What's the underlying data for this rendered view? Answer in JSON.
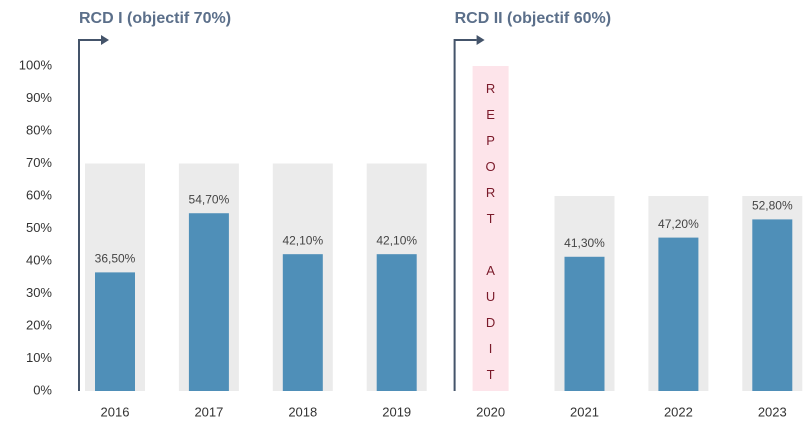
{
  "chart_data": {
    "type": "bar",
    "categories": [
      "2016",
      "2017",
      "2018",
      "2019",
      "2020",
      "2021",
      "2022",
      "2023"
    ],
    "series": [
      {
        "color": "#ebebeb",
        "values": [
          70,
          70,
          70,
          70,
          null,
          60,
          60,
          60
        ]
      },
      {
        "color": "#4f8fb8",
        "values": [
          36.5,
          54.7,
          42.1,
          42.1,
          null,
          41.3,
          47.2,
          52.8
        ],
        "value_labels": [
          "36,50%",
          "54,70%",
          "42,10%",
          "42,10%",
          null,
          "41,30%",
          "47,20%",
          "52,80%"
        ]
      }
    ],
    "audit": {
      "text": "REPORT AUDIT",
      "category": "2020",
      "value": 100,
      "color": "#fde4ea"
    },
    "annotations": [
      {
        "text": "RCD I (objectif 70%)",
        "category": "2016"
      },
      {
        "text": "RCD II (objectif 60%)",
        "category": "2020"
      }
    ],
    "ylim": [
      0,
      100
    ],
    "yticks": [
      {
        "value": 0,
        "label": "0%"
      },
      {
        "value": 10,
        "label": "10%"
      },
      {
        "value": 20,
        "label": "20%"
      },
      {
        "value": 30,
        "label": "30%"
      },
      {
        "value": 40,
        "label": "40%"
      },
      {
        "value": 50,
        "label": "50%"
      },
      {
        "value": 60,
        "label": "60%"
      },
      {
        "value": 70,
        "label": "70%"
      },
      {
        "value": 80,
        "label": "80%"
      },
      {
        "value": 90,
        "label": "90%"
      },
      {
        "value": 100,
        "label": "100%"
      }
    ],
    "grid": false
  }
}
